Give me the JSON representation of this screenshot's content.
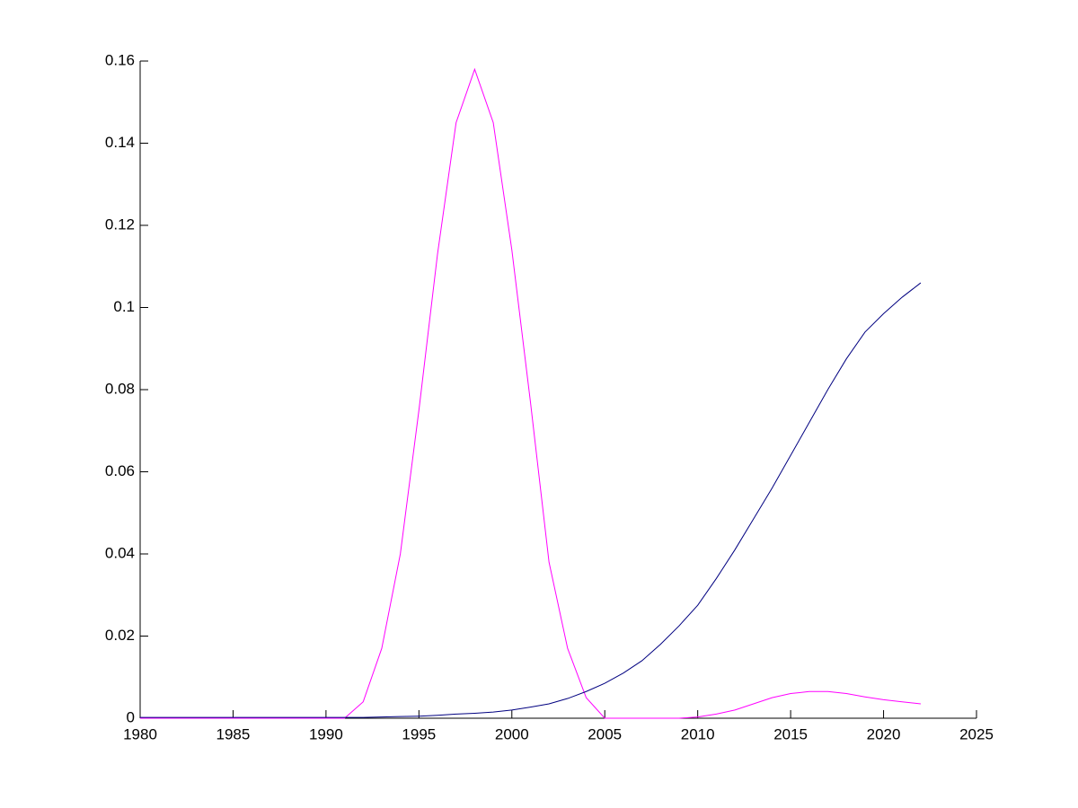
{
  "chart_data": {
    "type": "line",
    "x": [
      1980,
      1981,
      1982,
      1983,
      1984,
      1985,
      1986,
      1987,
      1988,
      1989,
      1990,
      1991,
      1992,
      1993,
      1994,
      1995,
      1996,
      1997,
      1998,
      1999,
      2000,
      2001,
      2002,
      2003,
      2004,
      2005,
      2006,
      2007,
      2008,
      2009,
      2010,
      2011,
      2012,
      2013,
      2014,
      2015,
      2016,
      2017,
      2018,
      2019,
      2020,
      2021,
      2022
    ],
    "series": [
      {
        "color": "#ff00ff",
        "values": [
          0,
          0,
          0,
          0,
          0,
          0,
          0,
          0,
          0,
          0,
          0,
          0,
          0.004,
          0.017,
          0.04,
          0.075,
          0.113,
          0.145,
          0.158,
          0.145,
          0.114,
          0.077,
          0.038,
          0.017,
          0.005,
          0,
          0,
          0,
          0,
          0,
          0.0003,
          0.001,
          0.002,
          0.0035,
          0.005,
          0.006,
          0.0065,
          0.0065,
          0.006,
          0.0052,
          0.0045,
          0.004,
          0.0035
        ]
      },
      {
        "color": "#000080",
        "values": [
          0.0002,
          0.0002,
          0.0002,
          0.0002,
          0.0002,
          0.0002,
          0.0002,
          0.0002,
          0.0002,
          0.0002,
          0.0002,
          0.0002,
          0.0002,
          0.0003,
          0.0004,
          0.0005,
          0.0007,
          0.001,
          0.0012,
          0.0015,
          0.002,
          0.0027,
          0.0035,
          0.0048,
          0.0065,
          0.0085,
          0.011,
          0.014,
          0.018,
          0.0225,
          0.0275,
          0.034,
          0.041,
          0.0485,
          0.056,
          0.064,
          0.072,
          0.08,
          0.0875,
          0.094,
          0.0985,
          0.1025,
          0.106
        ]
      }
    ],
    "xlim": [
      1980,
      2025
    ],
    "xticks": [
      1980,
      1985,
      1990,
      1995,
      2000,
      2005,
      2010,
      2015,
      2020,
      2025
    ],
    "ylim": [
      0,
      0.16
    ],
    "yticks": [
      0,
      0.02,
      0.04,
      0.06,
      0.08,
      0.1,
      0.12,
      0.14,
      0.16
    ]
  }
}
